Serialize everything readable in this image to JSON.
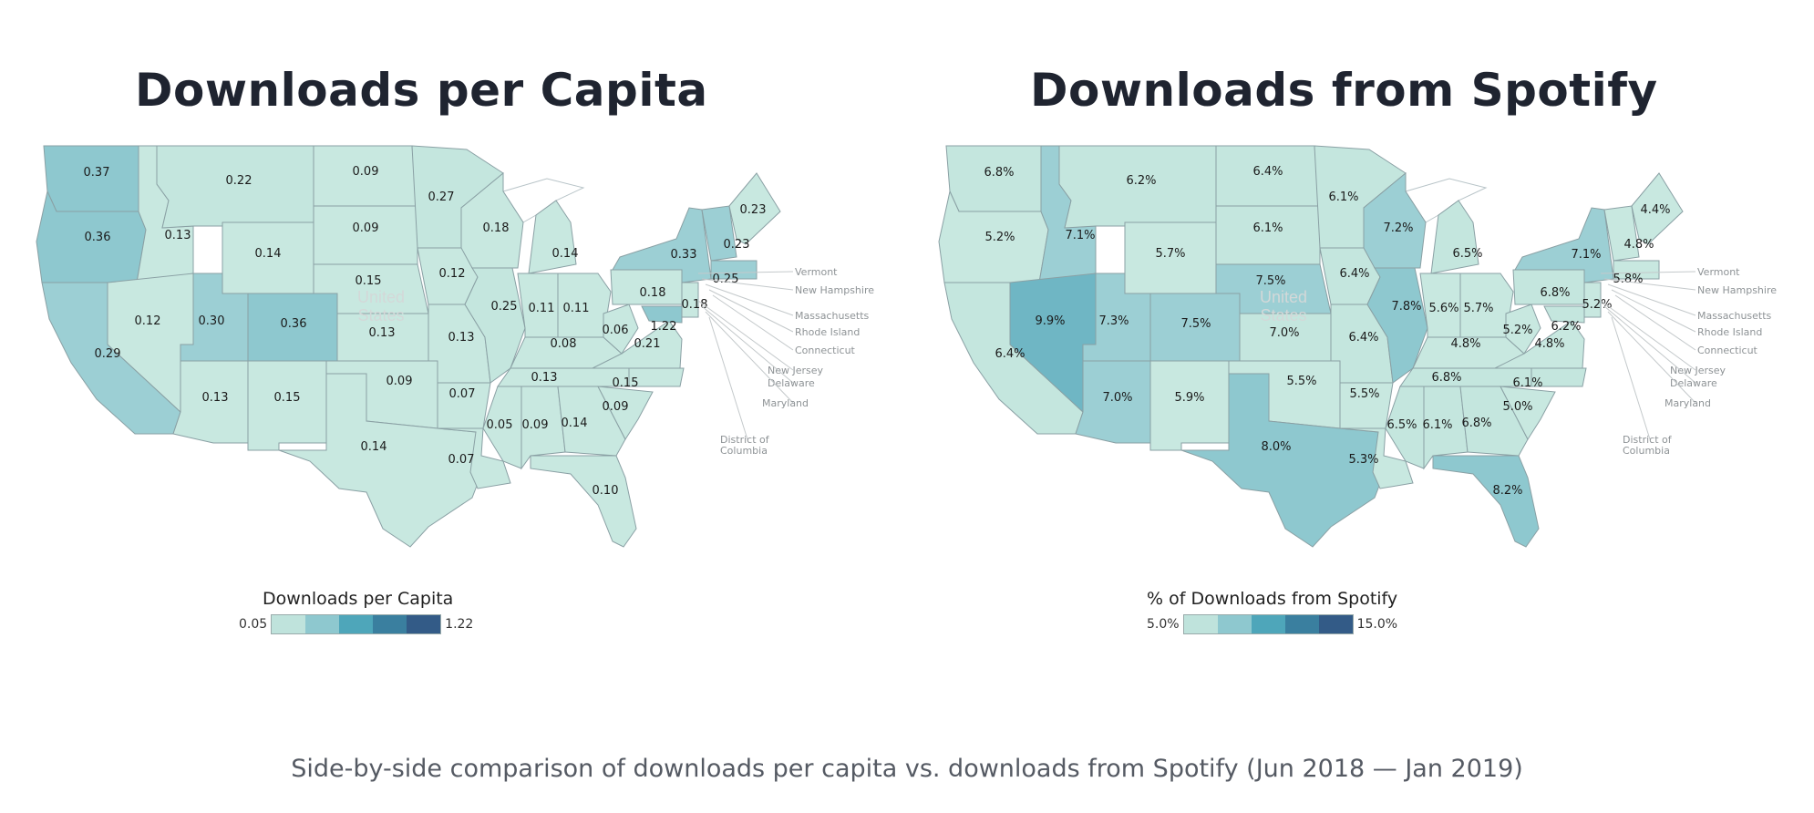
{
  "left_panel": {
    "title": "Downloads per Capita",
    "watermark": [
      "United",
      "States"
    ],
    "legend": {
      "title": "Downloads per Capita",
      "min_label": "0.05",
      "max_label": "1.22",
      "swatch_colors": [
        "#bfe3dc",
        "#8ec8cf",
        "#4ea6ba",
        "#3a7f9f",
        "#335b87"
      ]
    },
    "regions": [
      {
        "id": "WA",
        "label": "0.37",
        "color": "#8ec8cf"
      },
      {
        "id": "OR",
        "label": "0.36",
        "color": "#8ec8cf"
      },
      {
        "id": "CA",
        "label": "0.29",
        "color": "#9ccfd4"
      },
      {
        "id": "ID",
        "label": "0.13",
        "color": "#c8e8e0"
      },
      {
        "id": "NV",
        "label": "0.12",
        "color": "#c8e8e0"
      },
      {
        "id": "MT",
        "label": "0.22",
        "color": "#c4e6de"
      },
      {
        "id": "WY",
        "label": "0.14",
        "color": "#c8e8e0"
      },
      {
        "id": "UT",
        "label": "0.30",
        "color": "#9ccfd4"
      },
      {
        "id": "CO",
        "label": "0.36",
        "color": "#8ec8cf"
      },
      {
        "id": "AZ",
        "label": "0.13",
        "color": "#c8e8e0"
      },
      {
        "id": "NM",
        "label": "0.15",
        "color": "#c8e8e0"
      },
      {
        "id": "ND",
        "label": "0.09",
        "color": "#c8e8e0"
      },
      {
        "id": "SD",
        "label": "0.09",
        "color": "#c8e8e0"
      },
      {
        "id": "NE",
        "label": "0.15",
        "color": "#c8e8e0"
      },
      {
        "id": "KS",
        "label": "0.13",
        "color": "#c8e8e0"
      },
      {
        "id": "OK",
        "label": "0.09",
        "color": "#c8e8e0"
      },
      {
        "id": "TX",
        "label": "0.14",
        "color": "#c8e8e0"
      },
      {
        "id": "MN",
        "label": "0.27",
        "color": "#c4e6de"
      },
      {
        "id": "IA",
        "label": "0.12",
        "color": "#c8e8e0"
      },
      {
        "id": "MO",
        "label": "0.13",
        "color": "#c8e8e0"
      },
      {
        "id": "AR",
        "label": "0.07",
        "color": "#c8e8e0"
      },
      {
        "id": "LA",
        "label": "0.07",
        "color": "#c8e8e0"
      },
      {
        "id": "WI",
        "label": "0.18",
        "color": "#c8e8e0"
      },
      {
        "id": "IL",
        "label": "0.25",
        "color": "#c4e6de"
      },
      {
        "id": "MI",
        "label": "0.14",
        "color": "#c8e8e0"
      },
      {
        "id": "IN",
        "label": "0.11",
        "color": "#c8e8e0"
      },
      {
        "id": "OH",
        "label": "0.11",
        "color": "#c8e8e0"
      },
      {
        "id": "KY",
        "label": "0.08",
        "color": "#c8e8e0"
      },
      {
        "id": "TN",
        "label": "0.13",
        "color": "#c8e8e0"
      },
      {
        "id": "MS",
        "label": "0.05",
        "color": "#c8e8e0"
      },
      {
        "id": "AL",
        "label": "0.09",
        "color": "#c8e8e0"
      },
      {
        "id": "GA",
        "label": "0.14",
        "color": "#c8e8e0"
      },
      {
        "id": "FL",
        "label": "0.10",
        "color": "#c8e8e0"
      },
      {
        "id": "SC",
        "label": "0.09",
        "color": "#c8e8e0"
      },
      {
        "id": "NC",
        "label": "0.15",
        "color": "#c8e8e0"
      },
      {
        "id": "VA",
        "label": "0.21",
        "color": "#c8e8e0"
      },
      {
        "id": "WV",
        "label": "0.06",
        "color": "#c8e8e0"
      },
      {
        "id": "PA",
        "label": "0.18",
        "color": "#c8e8e0"
      },
      {
        "id": "NY",
        "label": "0.33",
        "color": "#9ccfd4"
      },
      {
        "id": "VT_NH",
        "label": "0.23",
        "color": "#9ccfd4"
      },
      {
        "id": "ME",
        "label": "0.23",
        "color": "#c8e8e0"
      },
      {
        "id": "MA",
        "label": "0.25",
        "color": "#9ccfd4"
      },
      {
        "id": "NJ",
        "label": "0.18",
        "color": "#c8e8e0"
      },
      {
        "id": "MD",
        "label": "1.22",
        "color": "#8ec8cf"
      }
    ],
    "callouts": [
      "Vermont",
      "New Hampshire",
      "Massachusetts",
      "Rhode Island",
      "Connecticut",
      "New Jersey",
      "Delaware",
      "Maryland",
      "District of",
      "Columbia"
    ]
  },
  "right_panel": {
    "title": "Downloads from Spotify",
    "watermark": [
      "United",
      "States"
    ],
    "legend": {
      "title": "% of Downloads from Spotify",
      "min_label": "5.0%",
      "max_label": "15.0%",
      "swatch_colors": [
        "#bfe3dc",
        "#8ec8cf",
        "#4ea6ba",
        "#3a7f9f",
        "#335b87"
      ]
    },
    "regions": [
      {
        "id": "WA",
        "label": "6.8%",
        "color": "#c4e6de"
      },
      {
        "id": "OR",
        "label": "5.2%",
        "color": "#c8e8e0"
      },
      {
        "id": "CA",
        "label": "6.4%",
        "color": "#c4e6de"
      },
      {
        "id": "ID",
        "label": "7.1%",
        "color": "#9ccfd4"
      },
      {
        "id": "NV",
        "label": "9.9%",
        "color": "#6fb6c4"
      },
      {
        "id": "MT",
        "label": "6.2%",
        "color": "#c4e6de"
      },
      {
        "id": "WY",
        "label": "5.7%",
        "color": "#c8e8e0"
      },
      {
        "id": "UT",
        "label": "7.3%",
        "color": "#9ccfd4"
      },
      {
        "id": "CO",
        "label": "7.5%",
        "color": "#9ccfd4"
      },
      {
        "id": "AZ",
        "label": "7.0%",
        "color": "#9ccfd4"
      },
      {
        "id": "NM",
        "label": "5.9%",
        "color": "#c8e8e0"
      },
      {
        "id": "ND",
        "label": "6.4%",
        "color": "#c4e6de"
      },
      {
        "id": "SD",
        "label": "6.1%",
        "color": "#c4e6de"
      },
      {
        "id": "NE",
        "label": "7.5%",
        "color": "#9ccfd4"
      },
      {
        "id": "KS",
        "label": "7.0%",
        "color": "#c4e6de"
      },
      {
        "id": "OK",
        "label": "5.5%",
        "color": "#c8e8e0"
      },
      {
        "id": "TX",
        "label": "8.0%",
        "color": "#8ec8cf"
      },
      {
        "id": "MN",
        "label": "6.1%",
        "color": "#c4e6de"
      },
      {
        "id": "IA",
        "label": "6.4%",
        "color": "#c4e6de"
      },
      {
        "id": "MO",
        "label": "6.4%",
        "color": "#c4e6de"
      },
      {
        "id": "AR",
        "label": "5.5%",
        "color": "#c8e8e0"
      },
      {
        "id": "LA",
        "label": "5.3%",
        "color": "#c8e8e0"
      },
      {
        "id": "WI",
        "label": "7.2%",
        "color": "#9ccfd4"
      },
      {
        "id": "IL",
        "label": "7.8%",
        "color": "#8ec8cf"
      },
      {
        "id": "MI",
        "label": "6.5%",
        "color": "#c4e6de"
      },
      {
        "id": "IN",
        "label": "5.6%",
        "color": "#c8e8e0"
      },
      {
        "id": "OH",
        "label": "5.7%",
        "color": "#c8e8e0"
      },
      {
        "id": "KY",
        "label": "4.8%",
        "color": "#c8e8e0"
      },
      {
        "id": "TN",
        "label": "6.8%",
        "color": "#c4e6de"
      },
      {
        "id": "MS",
        "label": "6.5%",
        "color": "#c4e6de"
      },
      {
        "id": "AL",
        "label": "6.1%",
        "color": "#c4e6de"
      },
      {
        "id": "GA",
        "label": "6.8%",
        "color": "#c4e6de"
      },
      {
        "id": "FL",
        "label": "8.2%",
        "color": "#8ec8cf"
      },
      {
        "id": "SC",
        "label": "5.0%",
        "color": "#c8e8e0"
      },
      {
        "id": "NC",
        "label": "6.1%",
        "color": "#c4e6de"
      },
      {
        "id": "VA",
        "label": "4.8%",
        "color": "#c8e8e0"
      },
      {
        "id": "WV",
        "label": "5.2%",
        "color": "#c8e8e0"
      },
      {
        "id": "PA",
        "label": "6.8%",
        "color": "#c4e6de"
      },
      {
        "id": "NY",
        "label": "7.1%",
        "color": "#9ccfd4"
      },
      {
        "id": "VT_NH",
        "label": "4.8%",
        "color": "#c8e8e0"
      },
      {
        "id": "ME",
        "label": "4.4%",
        "color": "#c8e8e0"
      },
      {
        "id": "MA",
        "label": "5.8%",
        "color": "#c8e8e0"
      },
      {
        "id": "NJ",
        "label": "5.2%",
        "color": "#c8e8e0"
      },
      {
        "id": "MD",
        "label": "6.2%",
        "color": "#c4e6de"
      }
    ],
    "callouts": [
      "Vermont",
      "New Hampshire",
      "Massachusetts",
      "Rhode Island",
      "Connecticut",
      "New Jersey",
      "Delaware",
      "Maryland",
      "District of",
      "Columbia"
    ]
  },
  "caption": "Side-by-side comparison of downloads per capita vs. downloads from Spotify (Jun 2018 — Jan 2019)"
}
